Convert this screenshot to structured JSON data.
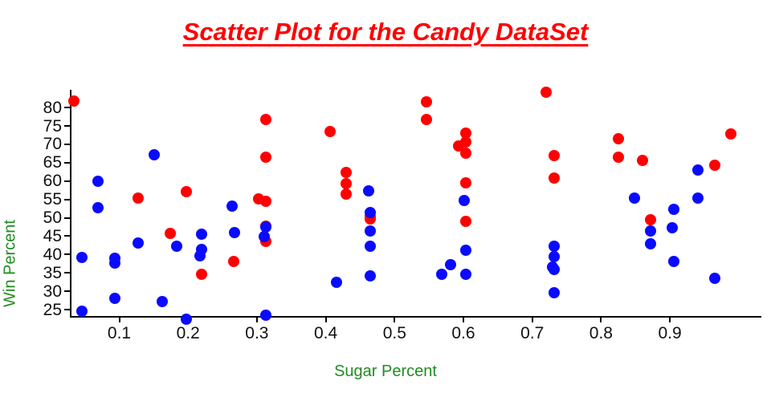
{
  "chart_data": {
    "type": "scatter",
    "title": "Scatter Plot for the Candy DataSet",
    "xlabel": "Sugar Percent",
    "ylabel": "Win Percent",
    "title_color": "#ff0000",
    "axis_label_color": "#228B22",
    "tick_label_color": "#111111",
    "x_ticks": [
      0.1,
      0.2,
      0.3,
      0.4,
      0.5,
      0.6,
      0.7,
      0.8,
      0.9
    ],
    "y_ticks": [
      25,
      30,
      35,
      40,
      45,
      50,
      55,
      60,
      65,
      70,
      75,
      80
    ],
    "xlim": [
      0.03,
      1.03
    ],
    "ylim": [
      22.5,
      84.7
    ],
    "grid": false,
    "legend": null,
    "series": [
      {
        "name": "red-series",
        "color": "#ff0000",
        "points": [
          [
            0.034,
            81.87
          ],
          [
            0.546,
            81.64
          ],
          [
            0.72,
            84.18
          ],
          [
            0.988,
            72.88
          ],
          [
            0.313,
            76.77
          ],
          [
            0.546,
            76.67
          ],
          [
            0.406,
            73.43
          ],
          [
            0.604,
            73.1
          ],
          [
            0.825,
            71.46
          ],
          [
            0.604,
            70.74
          ],
          [
            0.593,
            69.48
          ],
          [
            0.604,
            67.6
          ],
          [
            0.732,
            66.97
          ],
          [
            0.825,
            66.57
          ],
          [
            0.313,
            66.47
          ],
          [
            0.86,
            65.72
          ],
          [
            0.965,
            64.35
          ],
          [
            0.43,
            62.28
          ],
          [
            0.732,
            60.8
          ],
          [
            0.604,
            59.53
          ],
          [
            0.43,
            59.24
          ],
          [
            0.197,
            57.06
          ],
          [
            0.43,
            56.49
          ],
          [
            0.127,
            55.37
          ],
          [
            0.302,
            55.06
          ],
          [
            0.313,
            54.53
          ],
          [
            0.465,
            50.35
          ],
          [
            0.465,
            49.65
          ],
          [
            0.872,
            49.52
          ],
          [
            0.604,
            48.98
          ],
          [
            0.313,
            47.83
          ],
          [
            0.174,
            45.74
          ],
          [
            0.313,
            43.6
          ],
          [
            0.266,
            38.1
          ],
          [
            0.22,
            34.72
          ]
        ]
      },
      {
        "name": "blue-series",
        "color": "#0a0aff",
        "points": [
          [
            0.151,
            67.04
          ],
          [
            0.941,
            63.09
          ],
          [
            0.069,
            59.86
          ],
          [
            0.462,
            57.3
          ],
          [
            0.848,
            55.35
          ],
          [
            0.941,
            55.35
          ],
          [
            0.601,
            54.8
          ],
          [
            0.264,
            53.1
          ],
          [
            0.069,
            52.83
          ],
          [
            0.906,
            52.34
          ],
          [
            0.465,
            51.41
          ],
          [
            0.903,
            47.2
          ],
          [
            0.313,
            47.4
          ],
          [
            0.465,
            46.41
          ],
          [
            0.872,
            46.41
          ],
          [
            0.267,
            45.99
          ],
          [
            0.22,
            45.47
          ],
          [
            0.311,
            44.9
          ],
          [
            0.127,
            43.09
          ],
          [
            0.872,
            42.85
          ],
          [
            0.184,
            42.3
          ],
          [
            0.732,
            42.27
          ],
          [
            0.465,
            42.18
          ],
          [
            0.604,
            41.27
          ],
          [
            0.22,
            41.39
          ],
          [
            0.217,
            39.6
          ],
          [
            0.732,
            39.46
          ],
          [
            0.093,
            39.01
          ],
          [
            0.046,
            39.14
          ],
          [
            0.906,
            38.01
          ],
          [
            0.093,
            37.72
          ],
          [
            0.581,
            37.35
          ],
          [
            0.73,
            36.7
          ],
          [
            0.732,
            36.02
          ],
          [
            0.569,
            34.58
          ],
          [
            0.604,
            34.52
          ],
          [
            0.465,
            34.16
          ],
          [
            0.965,
            33.44
          ],
          [
            0.416,
            32.5
          ],
          [
            0.732,
            29.7
          ],
          [
            0.093,
            28.13
          ],
          [
            0.162,
            27.3
          ],
          [
            0.046,
            24.52
          ],
          [
            0.313,
            23.42
          ],
          [
            0.197,
            22.45
          ]
        ]
      }
    ]
  }
}
